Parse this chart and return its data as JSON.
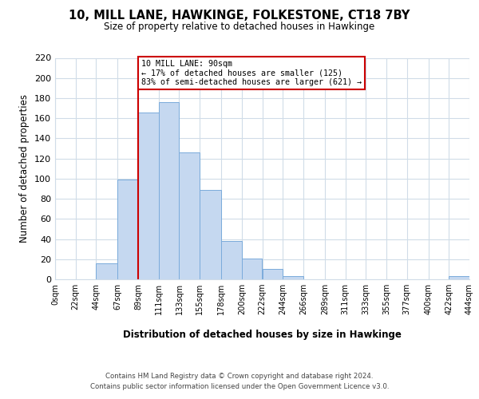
{
  "title": "10, MILL LANE, HAWKINGE, FOLKESTONE, CT18 7BY",
  "subtitle": "Size of property relative to detached houses in Hawkinge",
  "xlabel": "Distribution of detached houses by size in Hawkinge",
  "ylabel": "Number of detached properties",
  "bin_edges": [
    0,
    22,
    44,
    67,
    89,
    111,
    133,
    155,
    178,
    200,
    222,
    244,
    266,
    289,
    311,
    333,
    355,
    377,
    400,
    422,
    444
  ],
  "bar_heights": [
    0,
    0,
    16,
    99,
    166,
    176,
    126,
    89,
    38,
    21,
    10,
    3,
    0,
    0,
    0,
    0,
    0,
    0,
    0,
    3
  ],
  "tick_labels": [
    "0sqm",
    "22sqm",
    "44sqm",
    "67sqm",
    "89sqm",
    "111sqm",
    "133sqm",
    "155sqm",
    "178sqm",
    "200sqm",
    "222sqm",
    "244sqm",
    "266sqm",
    "289sqm",
    "311sqm",
    "333sqm",
    "355sqm",
    "377sqm",
    "400sqm",
    "422sqm",
    "444sqm"
  ],
  "bar_color": "#c5d8f0",
  "bar_edge_color": "#7aabdb",
  "property_line_x": 89,
  "property_line_color": "#cc0000",
  "annotation_text": "10 MILL LANE: 90sqm\n← 17% of detached houses are smaller (125)\n83% of semi-detached houses are larger (621) →",
  "annotation_box_color": "#ffffff",
  "annotation_box_edge_color": "#cc0000",
  "ylim": [
    0,
    220
  ],
  "yticks": [
    0,
    20,
    40,
    60,
    80,
    100,
    120,
    140,
    160,
    180,
    200,
    220
  ],
  "grid_color": "#d0dce8",
  "footer_line1": "Contains HM Land Registry data © Crown copyright and database right 2024.",
  "footer_line2": "Contains public sector information licensed under the Open Government Licence v3.0."
}
